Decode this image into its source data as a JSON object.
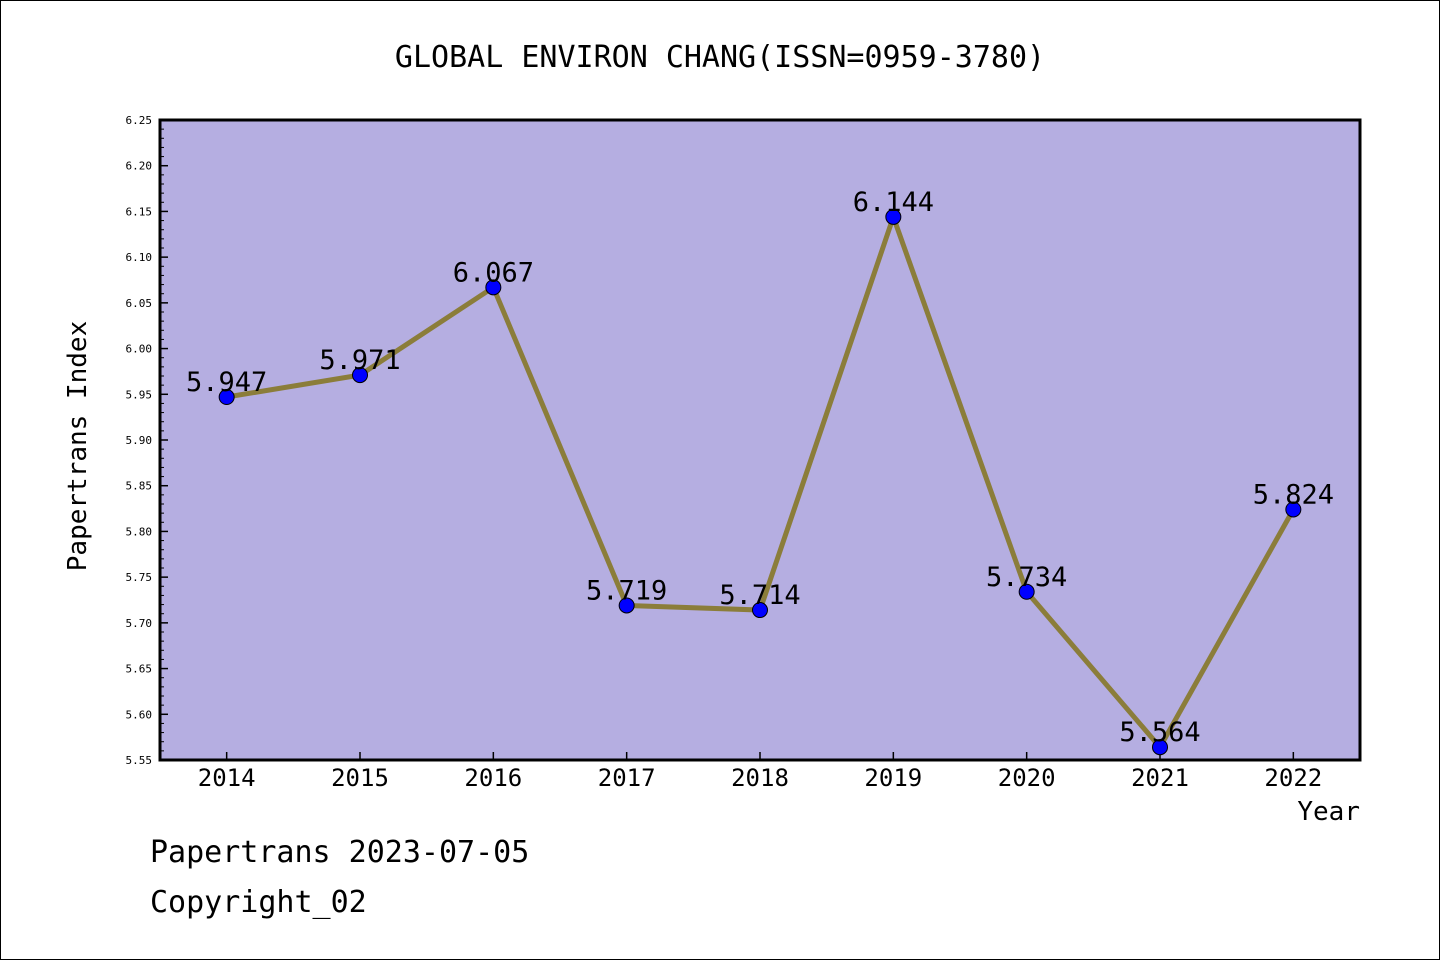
{
  "chart_data": {
    "type": "line",
    "title": "GLOBAL ENVIRON CHANG(ISSN=0959-3780)",
    "xlabel": "Year",
    "ylabel": "Papertrans Index",
    "categories": [
      "2014",
      "2015",
      "2016",
      "2017",
      "2018",
      "2019",
      "2020",
      "2021",
      "2022"
    ],
    "values": [
      5.947,
      5.971,
      6.067,
      5.719,
      5.714,
      6.144,
      5.734,
      5.564,
      5.824
    ],
    "value_labels": [
      "5.947",
      "5.971",
      "6.067",
      "5.719",
      "5.714",
      "6.144",
      "5.734",
      "5.564",
      "5.824"
    ],
    "ylim": [
      5.55,
      6.25
    ],
    "yticks": [
      "5.55",
      "5.60",
      "5.65",
      "5.70",
      "5.75",
      "5.80",
      "5.85",
      "5.90",
      "5.95",
      "6.00",
      "6.05",
      "6.10",
      "6.15",
      "6.20",
      "6.25"
    ],
    "grid": false,
    "legend": "none"
  },
  "colors": {
    "plot_background": "#b5aee1",
    "line": "#8b7d3a",
    "marker": "#0000ff"
  },
  "footer": {
    "date_line": "Papertrans 2023-07-05",
    "copyright": "Copyright_02"
  }
}
